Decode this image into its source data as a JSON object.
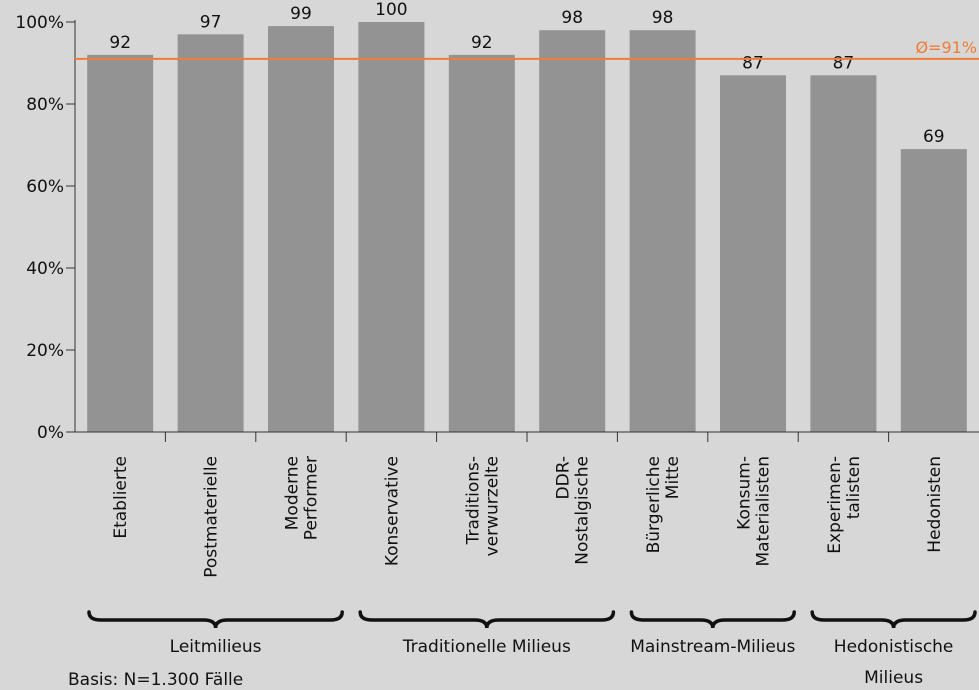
{
  "chart_data": {
    "type": "bar",
    "categories": [
      [
        "Etablierte"
      ],
      [
        "Postmaterielle"
      ],
      [
        "Moderne",
        "Performer"
      ],
      [
        "Konservative"
      ],
      [
        "Traditions-",
        "verwurzelte"
      ],
      [
        "DDR-",
        "Nostalgische"
      ],
      [
        "Bürgerliche",
        "Mitte"
      ],
      [
        "Konsum-",
        "Materialisten"
      ],
      [
        "Experimen-",
        "talisten"
      ],
      [
        "Hedonisten"
      ]
    ],
    "values": [
      92,
      97,
      99,
      100,
      92,
      98,
      98,
      87,
      87,
      69
    ],
    "data_labels": [
      "92",
      "97",
      "99",
      "100",
      "92",
      "98",
      "98",
      "87",
      "87",
      "69"
    ],
    "ylim": [
      0,
      100
    ],
    "y_ticks": [
      0,
      20,
      40,
      60,
      80,
      100
    ],
    "y_tick_labels": [
      "0%",
      "20%",
      "40%",
      "60%",
      "80%",
      "100%"
    ],
    "average": {
      "value": 91,
      "label": "Ø=91%"
    },
    "groups": [
      {
        "label": [
          "Leitmilieus"
        ],
        "span": [
          0,
          2
        ]
      },
      {
        "label": [
          "Traditionelle Milieus"
        ],
        "span": [
          3,
          5
        ]
      },
      {
        "label": [
          "Mainstream-Milieus"
        ],
        "span": [
          6,
          7
        ]
      },
      {
        "label": [
          "Hedonistische",
          "Milieus"
        ],
        "span": [
          8,
          9
        ]
      }
    ],
    "grid": false,
    "colors": {
      "bar": "#939393",
      "average_line": "#ef7d36",
      "background": "#d7d7d7",
      "axis": "#333333"
    }
  },
  "footnote": "Basis: N=1.300 Fälle"
}
